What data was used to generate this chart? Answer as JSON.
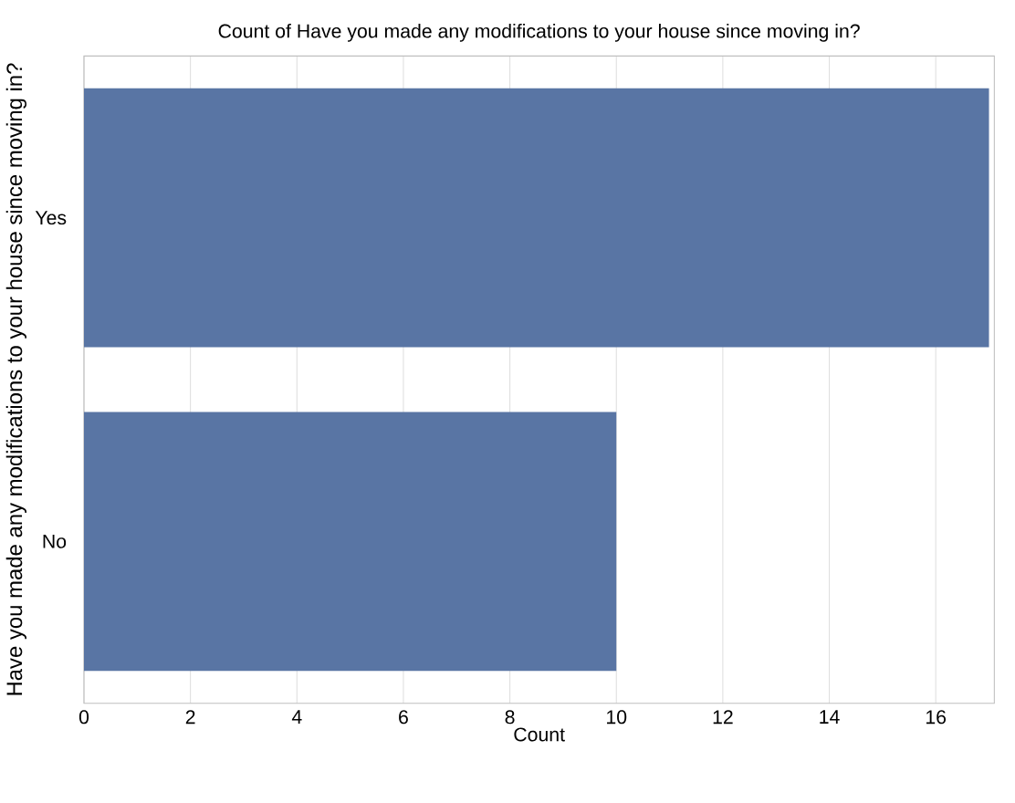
{
  "chart_data": {
    "type": "bar",
    "orientation": "horizontal",
    "title": "Count of Have you made any modifications to your house since moving in?",
    "xlabel": "Count",
    "ylabel": "Have you made any modifications to your house since moving in?",
    "categories": [
      "Yes",
      "No"
    ],
    "values": [
      17,
      10
    ],
    "color": "#5975a4",
    "xlim": [
      0,
      17.1
    ],
    "xticks": [
      0,
      2,
      4,
      6,
      8,
      10,
      12,
      14,
      16
    ],
    "grid": "x"
  }
}
